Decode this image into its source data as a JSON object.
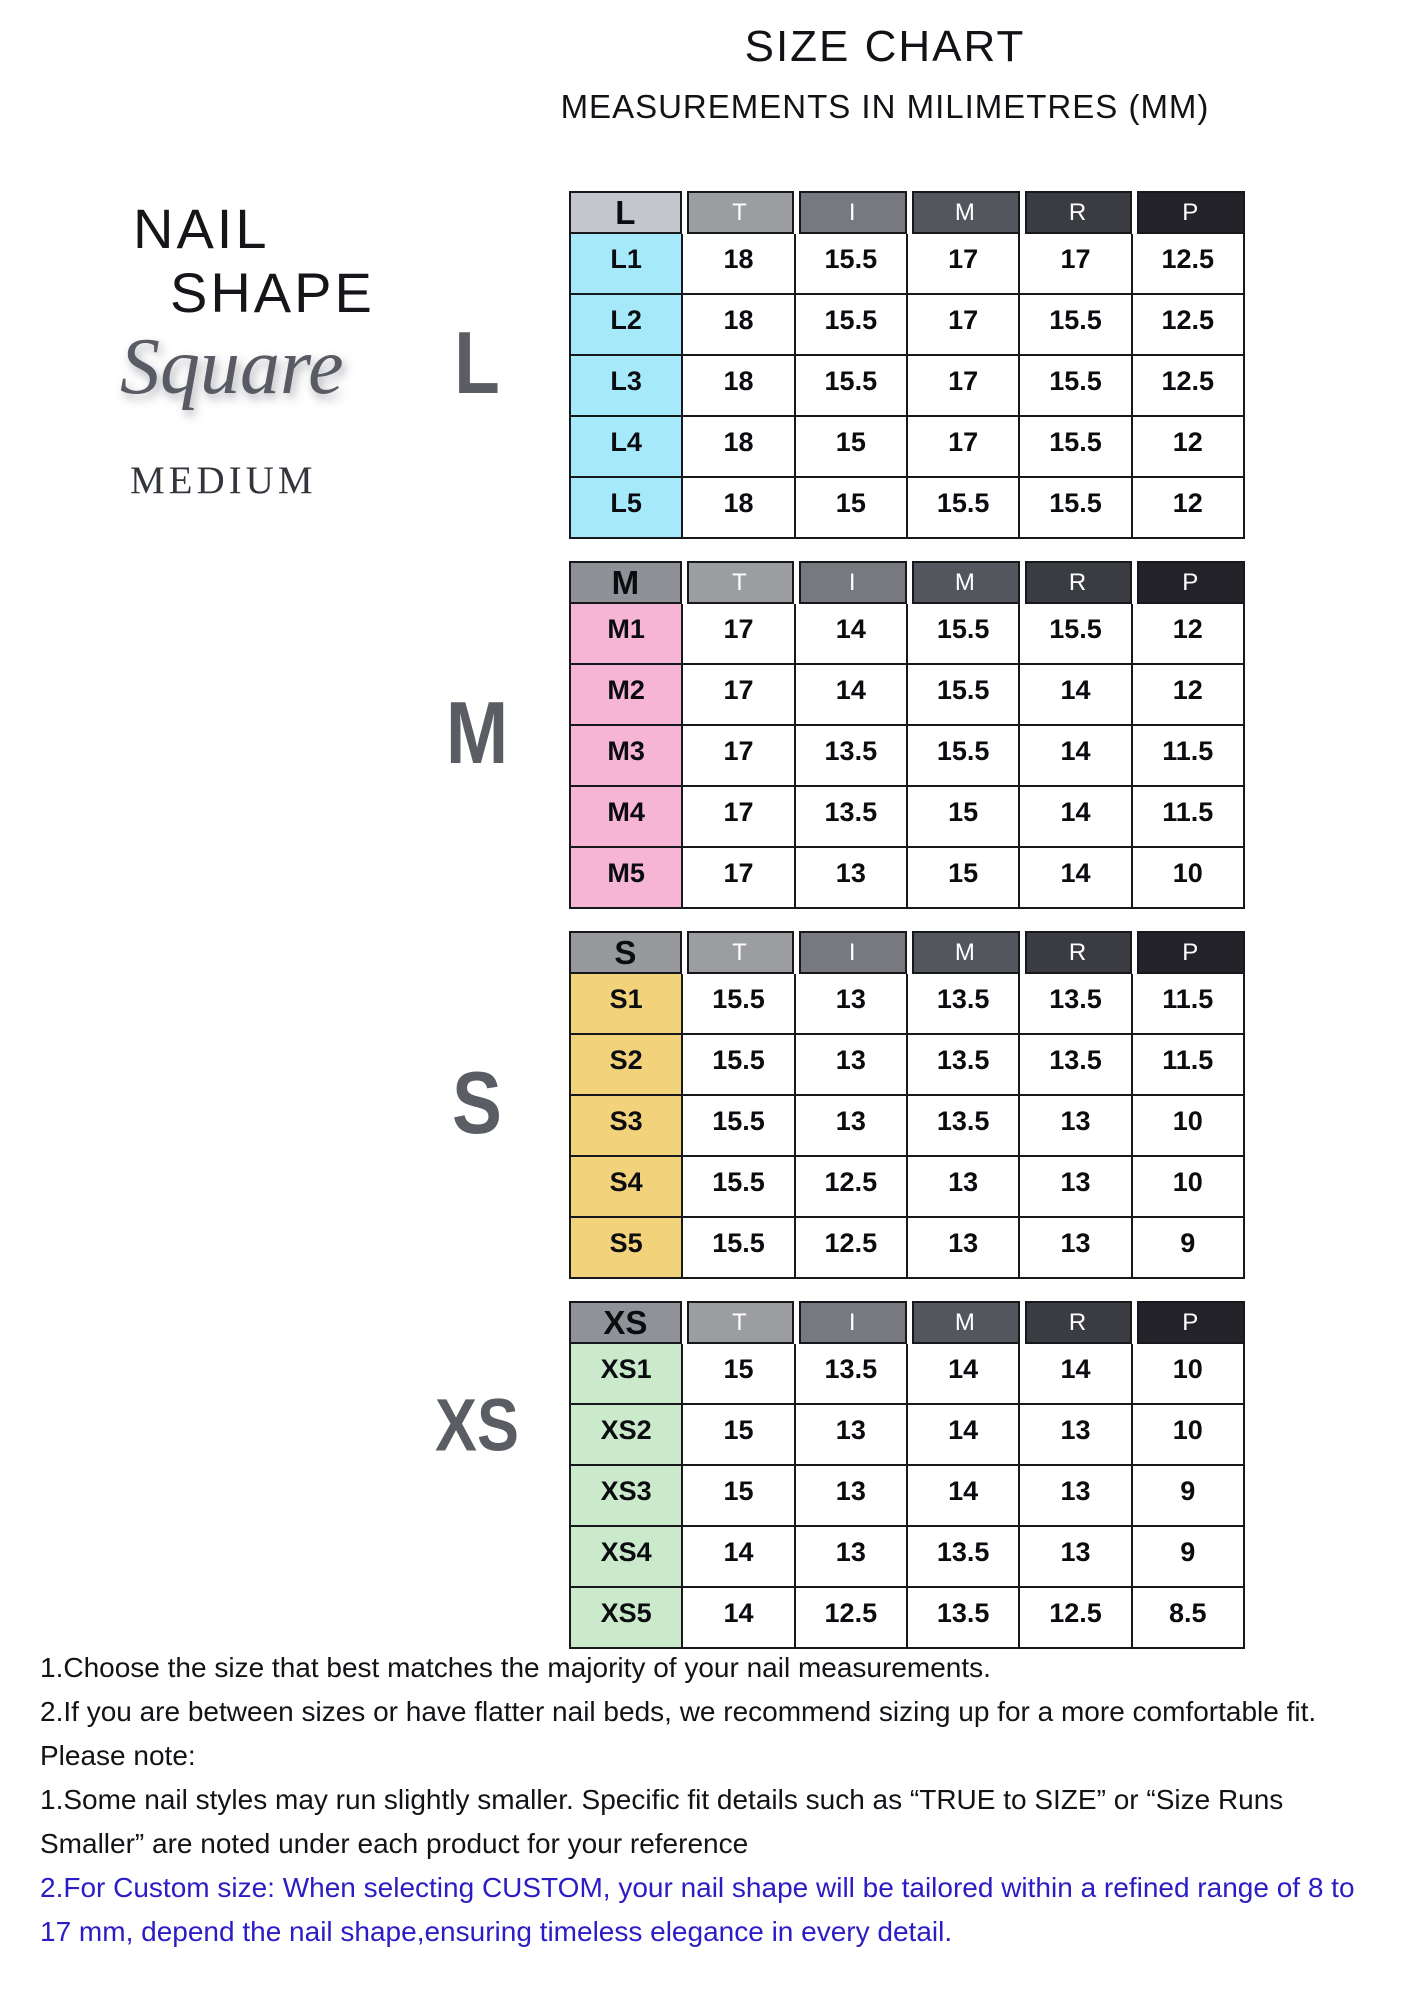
{
  "chart_data": {
    "type": "table",
    "title": "SIZE CHART",
    "subtitle": "MEASUREMENTS IN MILIMETRES (MM)",
    "columns": [
      "T",
      "I",
      "M",
      "R",
      "P"
    ],
    "groups": [
      {
        "name": "L",
        "rows": [
          {
            "label": "L1",
            "values": [
              18,
              15.5,
              17,
              17,
              12.5
            ]
          },
          {
            "label": "L2",
            "values": [
              18,
              15.5,
              17,
              15.5,
              12.5
            ]
          },
          {
            "label": "L3",
            "values": [
              18,
              15.5,
              17,
              15.5,
              12.5
            ]
          },
          {
            "label": "L4",
            "values": [
              18,
              15,
              17,
              15.5,
              12
            ]
          },
          {
            "label": "L5",
            "values": [
              18,
              15,
              15.5,
              15.5,
              12
            ]
          }
        ]
      },
      {
        "name": "M",
        "rows": [
          {
            "label": "M1",
            "values": [
              17,
              14,
              15.5,
              15.5,
              12
            ]
          },
          {
            "label": "M2",
            "values": [
              17,
              14,
              15.5,
              14,
              12
            ]
          },
          {
            "label": "M3",
            "values": [
              17,
              13.5,
              15.5,
              14,
              11.5
            ]
          },
          {
            "label": "M4",
            "values": [
              17,
              13.5,
              15,
              14,
              11.5
            ]
          },
          {
            "label": "M5",
            "values": [
              17,
              13,
              15,
              14,
              10
            ]
          }
        ]
      },
      {
        "name": "S",
        "rows": [
          {
            "label": "S1",
            "values": [
              15.5,
              13,
              13.5,
              13.5,
              11.5
            ]
          },
          {
            "label": "S2",
            "values": [
              15.5,
              13,
              13.5,
              13.5,
              11.5
            ]
          },
          {
            "label": "S3",
            "values": [
              15.5,
              13,
              13.5,
              13,
              10
            ]
          },
          {
            "label": "S4",
            "values": [
              15.5,
              12.5,
              13,
              13,
              10
            ]
          },
          {
            "label": "S5",
            "values": [
              15.5,
              12.5,
              13,
              13,
              9
            ]
          }
        ]
      },
      {
        "name": "XS",
        "rows": [
          {
            "label": "XS1",
            "values": [
              15,
              13.5,
              14,
              14,
              10
            ]
          },
          {
            "label": "XS2",
            "values": [
              15,
              13,
              14,
              13,
              10
            ]
          },
          {
            "label": "XS3",
            "values": [
              15,
              13,
              14,
              13,
              9
            ]
          },
          {
            "label": "XS4",
            "values": [
              14,
              13,
              13.5,
              13,
              9
            ]
          },
          {
            "label": "XS5",
            "values": [
              14,
              12.5,
              13.5,
              12.5,
              8.5
            ]
          }
        ]
      }
    ]
  },
  "left_panel": {
    "heading_line1": "NAIL",
    "heading_line2": "SHAPE",
    "shape_script": "Square",
    "length_label": "MEDIUM"
  },
  "styles": {
    "column_header_bg": [
      "#9b9da1",
      "#77797e",
      "#54565e",
      "#3a3c42",
      "#232329"
    ],
    "header_label_bg": {
      "L": "#c3c6cb",
      "M": "#8f9197",
      "S": "#97999d",
      "XS": "#909297"
    },
    "row_label_bg": {
      "L": "#a6e9fa",
      "M": "#f7b5d5",
      "S": "#f2d37c",
      "XS": "#cbeacb"
    },
    "side_letter_color": "#5b5d64",
    "accent_blue": "#2b1cc6"
  },
  "footer": {
    "notes": [
      {
        "text": "1.Choose the size that best matches the majority of your nail measurements.",
        "emphasis": "normal"
      },
      {
        "text": "2.If you are between sizes or have flatter nail beds, we recommend sizing up for a more comfortable fit.",
        "emphasis": "normal"
      },
      {
        "text": "Please note:",
        "emphasis": "normal"
      },
      {
        "text": "1.Some nail styles may run slightly smaller. Specific fit details such as “TRUE to SIZE” or “Size Runs Smaller” are noted under each product for your reference",
        "emphasis": "normal"
      },
      {
        "text": "2.For Custom size: When selecting CUSTOM, your nail shape will be tailored within a refined range of 8 to 17 mm, depend the nail shape,ensuring timeless elegance in every detail.",
        "emphasis": "custom-blue"
      }
    ]
  }
}
